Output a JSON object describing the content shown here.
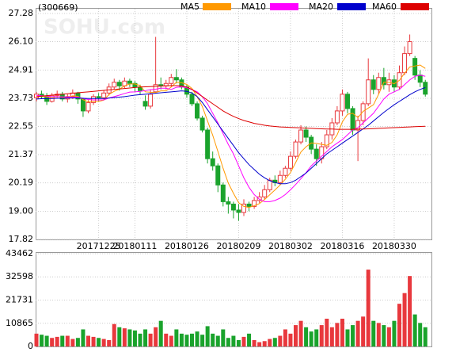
{
  "chart_data": {
    "type": "candlestick",
    "code": "(300669)",
    "watermark": "SOHU.com",
    "categories": [
      null,
      null,
      null,
      null,
      null,
      null,
      null,
      null,
      null,
      null,
      null,
      null,
      "20171225",
      null,
      null,
      null,
      null,
      null,
      null,
      "20180111",
      null,
      null,
      null,
      null,
      null,
      null,
      null,
      null,
      null,
      "20180126",
      null,
      null,
      null,
      null,
      null,
      null,
      null,
      null,
      null,
      "20180209",
      null,
      null,
      null,
      null,
      null,
      null,
      null,
      null,
      null,
      "20180302",
      null,
      null,
      null,
      null,
      null,
      null,
      null,
      null,
      null,
      "20180316",
      null,
      null,
      null,
      null,
      null,
      null,
      null,
      null,
      null,
      "20180330",
      null,
      null,
      null,
      null,
      null,
      null
    ],
    "open": [
      23.75,
      23.9,
      23.8,
      23.6,
      23.85,
      23.9,
      23.7,
      23.8,
      23.95,
      23.7,
      23.2,
      23.55,
      23.8,
      23.75,
      23.95,
      24.2,
      24.4,
      24.25,
      24.45,
      24.35,
      24.2,
      23.6,
      23.4,
      24.0,
      24.3,
      24.25,
      24.35,
      24.6,
      24.5,
      24.2,
      23.9,
      23.5,
      22.9,
      22.4,
      21.2,
      20.9,
      20.1,
      19.4,
      19.3,
      19.05,
      18.95,
      19.3,
      19.2,
      19.45,
      19.6,
      19.9,
      20.3,
      20.2,
      20.5,
      20.8,
      21.3,
      21.9,
      22.4,
      22.1,
      21.6,
      21.2,
      21.7,
      22.2,
      22.7,
      23.2,
      23.9,
      23.3,
      22.4,
      22.8,
      23.5,
      24.5,
      24.1,
      24.6,
      24.3,
      24.5,
      24.2,
      24.8,
      25.6,
      25.4,
      24.7,
      24.4
    ],
    "close": [
      23.9,
      23.8,
      23.6,
      23.85,
      23.9,
      23.7,
      23.8,
      23.95,
      23.7,
      23.2,
      23.55,
      23.8,
      23.75,
      23.95,
      24.2,
      24.4,
      24.25,
      24.45,
      24.35,
      24.2,
      24.05,
      23.4,
      23.9,
      24.3,
      24.25,
      24.35,
      24.6,
      24.5,
      24.2,
      23.9,
      23.5,
      22.9,
      22.4,
      21.2,
      20.9,
      20.1,
      19.4,
      19.3,
      19.05,
      18.95,
      19.3,
      19.2,
      19.45,
      19.6,
      19.9,
      20.3,
      20.2,
      20.5,
      20.8,
      21.3,
      21.9,
      22.4,
      22.1,
      21.6,
      21.2,
      21.7,
      22.2,
      22.7,
      23.2,
      23.9,
      23.3,
      22.4,
      22.8,
      23.5,
      24.5,
      24.1,
      24.6,
      24.3,
      24.5,
      24.2,
      24.8,
      25.6,
      26.1,
      24.7,
      24.4,
      23.9
    ],
    "high": [
      24.0,
      24.05,
      23.95,
      23.95,
      24.05,
      24.0,
      23.9,
      24.1,
      24.0,
      23.75,
      23.65,
      23.9,
      23.95,
      24.05,
      24.35,
      24.55,
      24.5,
      24.6,
      24.55,
      24.45,
      24.3,
      23.85,
      24.1,
      26.3,
      24.6,
      24.5,
      24.75,
      24.95,
      24.6,
      24.3,
      24.0,
      23.6,
      23.0,
      22.5,
      21.5,
      21.0,
      20.2,
      19.6,
      19.4,
      19.3,
      19.5,
      19.4,
      19.6,
      19.8,
      20.1,
      20.4,
      20.5,
      20.7,
      20.9,
      21.5,
      22.0,
      22.6,
      22.55,
      22.2,
      21.8,
      21.9,
      22.4,
      22.9,
      23.4,
      24.1,
      24.0,
      23.4,
      23.0,
      23.6,
      25.4,
      24.7,
      24.8,
      25.0,
      24.8,
      24.7,
      25.1,
      25.9,
      26.4,
      25.5,
      24.9,
      24.5
    ],
    "low": [
      23.6,
      23.7,
      23.45,
      23.55,
      23.75,
      23.6,
      23.55,
      23.7,
      23.5,
      22.95,
      23.1,
      23.45,
      23.6,
      23.65,
      23.85,
      24.1,
      24.05,
      24.15,
      24.2,
      24.0,
      23.9,
      23.25,
      23.3,
      23.95,
      24.1,
      24.1,
      24.2,
      24.35,
      24.1,
      23.75,
      23.4,
      22.8,
      22.3,
      21.0,
      20.7,
      19.8,
      19.2,
      18.9,
      18.7,
      18.6,
      18.8,
      19.0,
      19.1,
      19.35,
      19.5,
      19.8,
      20.05,
      20.1,
      20.4,
      20.7,
      21.2,
      21.8,
      21.9,
      21.4,
      20.9,
      21.0,
      21.6,
      22.0,
      22.6,
      23.0,
      23.1,
      22.2,
      21.1,
      22.6,
      23.4,
      23.9,
      23.9,
      24.1,
      24.0,
      24.0,
      24.1,
      24.7,
      25.5,
      24.5,
      24.2,
      23.8
    ],
    "up_color": "#e8383d",
    "down_color": "#1aa32c",
    "series": [
      {
        "name": "MA5",
        "color": "#ff9900",
        "values": [
          23.8,
          23.82,
          23.78,
          23.76,
          23.79,
          23.77,
          23.75,
          23.83,
          23.81,
          23.67,
          23.58,
          23.6,
          23.6,
          23.65,
          23.89,
          24.02,
          24.11,
          24.25,
          24.33,
          24.33,
          24.26,
          24.0,
          23.98,
          23.97,
          24.04,
          24.04,
          24.2,
          24.4,
          24.38,
          24.31,
          24.14,
          23.8,
          23.38,
          22.78,
          22.18,
          21.5,
          20.8,
          20.18,
          19.75,
          19.36,
          19.2,
          19.16,
          19.23,
          19.32,
          19.49,
          19.69,
          19.89,
          20.1,
          20.34,
          20.62,
          21.04,
          21.48,
          21.7,
          21.86,
          21.84,
          21.8,
          21.76,
          21.88,
          22.2,
          22.74,
          23.06,
          23.1,
          22.92,
          23.18,
          23.32,
          23.46,
          23.9,
          24.4,
          24.4,
          24.34,
          24.48,
          24.78,
          25.04,
          25.08,
          25.12,
          24.98
        ]
      },
      {
        "name": "MA10",
        "color": "#ff00ff",
        "values": [
          23.85,
          23.84,
          23.82,
          23.8,
          23.8,
          23.79,
          23.78,
          23.78,
          23.78,
          23.72,
          23.68,
          23.66,
          23.66,
          23.66,
          23.74,
          23.8,
          23.86,
          23.93,
          23.99,
          24.0,
          24.02,
          24.05,
          24.09,
          24.11,
          24.15,
          24.15,
          24.1,
          24.19,
          24.21,
          24.17,
          24.09,
          24.0,
          23.8,
          23.5,
          23.1,
          22.7,
          22.25,
          21.8,
          21.4,
          20.9,
          20.4,
          20.0,
          19.7,
          19.5,
          19.4,
          19.4,
          19.45,
          19.55,
          19.7,
          19.9,
          20.12,
          20.36,
          20.62,
          20.9,
          21.1,
          21.3,
          21.5,
          21.7,
          21.85,
          22.0,
          22.2,
          22.4,
          22.5,
          22.7,
          22.9,
          23.1,
          23.4,
          23.7,
          23.9,
          24.0,
          24.1,
          24.3,
          24.5,
          24.65,
          24.7,
          24.65
        ]
      },
      {
        "name": "MA20",
        "color": "#0000cc",
        "values": [
          23.7,
          23.71,
          23.72,
          23.72,
          23.73,
          23.73,
          23.74,
          23.74,
          23.74,
          23.73,
          23.72,
          23.72,
          23.72,
          23.72,
          23.74,
          23.76,
          23.78,
          23.8,
          23.83,
          23.86,
          23.88,
          23.9,
          23.92,
          23.94,
          23.96,
          23.98,
          24.0,
          24.02,
          24.04,
          24.02,
          23.95,
          23.8,
          23.55,
          23.25,
          22.95,
          22.65,
          22.35,
          22.05,
          21.75,
          21.45,
          21.2,
          20.95,
          20.75,
          20.55,
          20.4,
          20.28,
          20.2,
          20.15,
          20.15,
          20.2,
          20.3,
          20.45,
          20.6,
          20.8,
          21.0,
          21.2,
          21.4,
          21.55,
          21.7,
          21.85,
          22.0,
          22.15,
          22.3,
          22.45,
          22.6,
          22.78,
          22.96,
          23.14,
          23.3,
          23.46,
          23.6,
          23.74,
          23.88,
          24.0,
          24.1,
          24.18
        ]
      },
      {
        "name": "MA60",
        "color": "#dd0000",
        "values": [
          23.8,
          23.82,
          23.84,
          23.86,
          23.88,
          23.9,
          23.92,
          23.94,
          23.96,
          23.98,
          24.0,
          24.02,
          24.04,
          24.06,
          24.08,
          24.1,
          24.12,
          24.14,
          24.16,
          24.18,
          24.2,
          24.21,
          24.22,
          24.23,
          24.24,
          24.25,
          24.26,
          24.26,
          24.25,
          24.2,
          24.1,
          23.95,
          23.8,
          23.65,
          23.5,
          23.35,
          23.2,
          23.08,
          22.97,
          22.88,
          22.8,
          22.74,
          22.68,
          22.64,
          22.6,
          22.57,
          22.55,
          22.53,
          22.52,
          22.51,
          22.5,
          22.49,
          22.48,
          22.47,
          22.46,
          22.45,
          22.44,
          22.44,
          22.43,
          22.43,
          22.43,
          22.43,
          22.44,
          22.44,
          22.45,
          22.46,
          22.47,
          22.48,
          22.49,
          22.5,
          22.51,
          22.52,
          22.53,
          22.54,
          22.55,
          22.56
        ]
      }
    ],
    "ylim": [
      17.82,
      27.28
    ],
    "yticks": [
      17.82,
      {
        "value": 19,
        "label": "19.00"
      },
      20.19,
      21.37,
      22.55,
      23.73,
      24.91,
      {
        "value": 26.1,
        "label": "26.10"
      },
      27.28
    ],
    "grid": true,
    "volume": {
      "values": [
        6000,
        5500,
        5000,
        4000,
        4500,
        5000,
        5000,
        3500,
        4000,
        8000,
        5000,
        4500,
        4000,
        3500,
        3000,
        10500,
        9000,
        8500,
        8000,
        7500,
        6000,
        8000,
        6000,
        9000,
        12000,
        6000,
        5000,
        8000,
        6000,
        5500,
        6000,
        7000,
        5500,
        9500,
        6000,
        5000,
        8000,
        4000,
        5000,
        3000,
        4500,
        6000,
        3000,
        2000,
        2500,
        3500,
        4000,
        5000,
        8000,
        6000,
        10000,
        12000,
        9000,
        7000,
        8000,
        10000,
        13000,
        9000,
        11000,
        13000,
        8000,
        10000,
        12000,
        14000,
        36000,
        12000,
        11000,
        10000,
        9000,
        12000,
        20000,
        25000,
        33000,
        15000,
        11000,
        9000
      ],
      "ylim": [
        0,
        43462
      ],
      "yticks": [
        0,
        10865,
        21731,
        32598,
        43462
      ]
    }
  }
}
